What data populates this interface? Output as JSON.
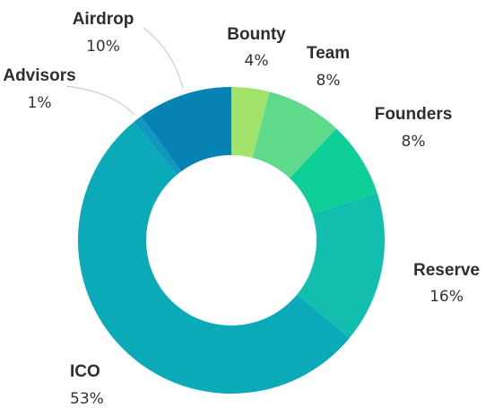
{
  "chart_data": {
    "type": "pie",
    "variant": "donut",
    "title": "",
    "legend": "none",
    "categories": [
      "Bounty",
      "Team",
      "Founders",
      "Reserve",
      "ICO",
      "Advisors",
      "Airdrop"
    ],
    "values": [
      4,
      8,
      8,
      16,
      53,
      1,
      10
    ],
    "value_labels": [
      "4%",
      "8%",
      "8%",
      "16%",
      "53%",
      "1%",
      "10%"
    ],
    "colors": [
      "#a1e36b",
      "#5fd98a",
      "#0fcf98",
      "#12bfae",
      "#0aaab9",
      "#0f99c0",
      "#0782b5"
    ]
  }
}
